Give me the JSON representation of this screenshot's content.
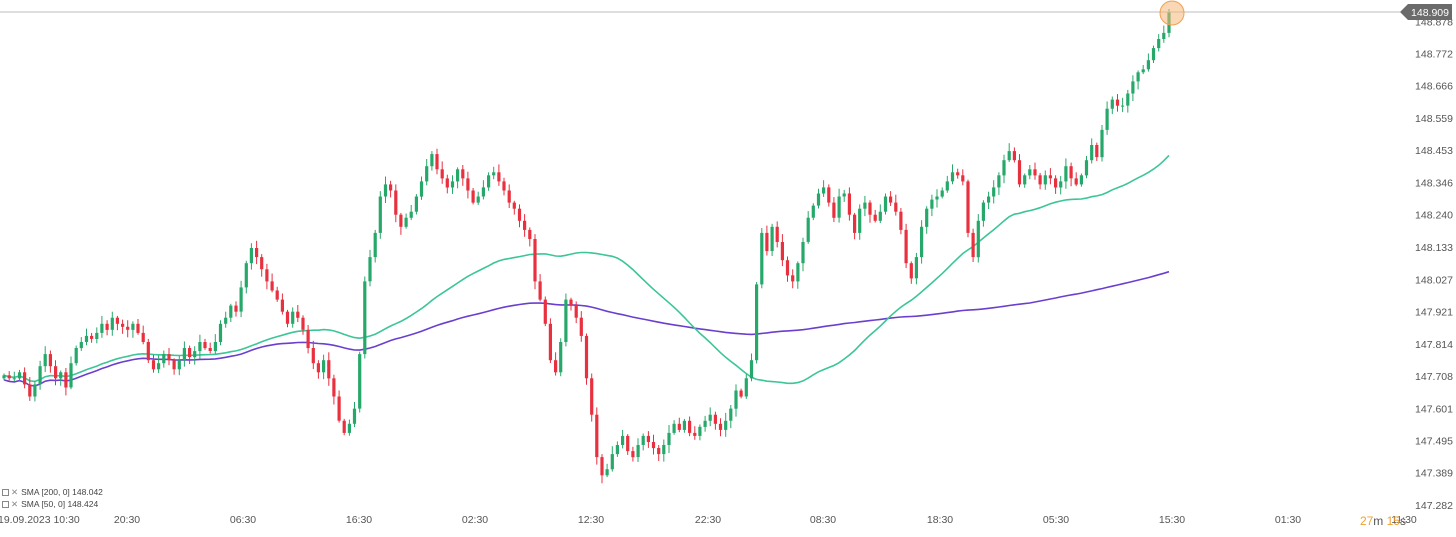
{
  "chart_data": {
    "type": "candlestick",
    "instrument_price_current": "148.909",
    "price_axis_ticks": [
      "148.878",
      "148.772",
      "148.666",
      "148.559",
      "148.453",
      "148.346",
      "148.240",
      "148.133",
      "148.027",
      "147.921",
      "147.814",
      "147.708",
      "147.601",
      "147.495",
      "147.389",
      "147.282"
    ],
    "time_axis_ticks": [
      "19.09.2023 10:30",
      "20:30",
      "06:30",
      "16:30",
      "02:30",
      "12:30",
      "22:30",
      "08:30",
      "18:30",
      "05:30",
      "15:30",
      "01:30",
      "11:30"
    ],
    "ylim": [
      147.282,
      148.909
    ],
    "closes": [
      147.71,
      147.7,
      147.7,
      147.72,
      147.68,
      147.64,
      147.68,
      147.74,
      147.78,
      147.74,
      147.7,
      147.72,
      147.67,
      147.75,
      147.8,
      147.82,
      147.84,
      147.83,
      147.85,
      147.88,
      147.86,
      147.9,
      147.88,
      147.87,
      147.86,
      147.88,
      147.85,
      147.82,
      147.76,
      147.73,
      147.75,
      147.78,
      147.76,
      147.73,
      147.76,
      147.8,
      147.77,
      147.79,
      147.82,
      147.8,
      147.79,
      147.82,
      147.88,
      147.9,
      147.94,
      147.92,
      148.0,
      148.08,
      148.13,
      148.1,
      148.06,
      148.02,
      147.99,
      147.96,
      147.92,
      147.88,
      147.92,
      147.9,
      147.86,
      147.8,
      147.75,
      147.72,
      147.76,
      147.7,
      147.64,
      147.56,
      147.52,
      147.55,
      147.6,
      147.78,
      148.02,
      148.1,
      148.18,
      148.3,
      148.34,
      148.32,
      148.24,
      148.2,
      148.23,
      148.25,
      148.3,
      148.35,
      148.4,
      148.44,
      148.39,
      148.36,
      148.33,
      148.35,
      148.39,
      148.36,
      148.32,
      148.28,
      148.3,
      148.33,
      148.37,
      148.38,
      148.35,
      148.32,
      148.28,
      148.26,
      148.22,
      148.19,
      148.16,
      148.02,
      147.96,
      147.88,
      147.76,
      147.72,
      147.82,
      147.96,
      147.94,
      147.9,
      147.84,
      147.7,
      147.58,
      147.44,
      147.38,
      147.4,
      147.45,
      147.48,
      147.51,
      147.46,
      147.44,
      147.48,
      147.51,
      147.49,
      147.47,
      147.45,
      147.48,
      147.52,
      147.55,
      147.53,
      147.56,
      147.52,
      147.51,
      147.54,
      147.56,
      147.58,
      147.55,
      147.53,
      147.56,
      147.6,
      147.66,
      147.64,
      147.7,
      147.76,
      148.01,
      148.18,
      148.12,
      148.2,
      148.15,
      148.09,
      148.04,
      148.02,
      148.08,
      148.15,
      148.23,
      148.27,
      148.31,
      148.33,
      148.28,
      148.23,
      148.3,
      148.31,
      148.24,
      148.18,
      148.26,
      148.28,
      148.24,
      148.22,
      148.25,
      148.3,
      148.28,
      148.25,
      148.19,
      148.08,
      148.03,
      148.1,
      148.2,
      148.26,
      148.29,
      148.3,
      148.32,
      148.35,
      148.38,
      148.37,
      148.35,
      148.18,
      148.1,
      148.22,
      148.28,
      148.3,
      148.33,
      148.37,
      148.42,
      148.45,
      148.42,
      148.34,
      148.37,
      148.39,
      148.37,
      148.34,
      148.37,
      148.36,
      148.33,
      148.35,
      148.4,
      148.36,
      148.34,
      148.37,
      148.42,
      148.47,
      148.43,
      148.52,
      148.59,
      148.62,
      148.6,
      148.6,
      148.64,
      148.68,
      148.71,
      148.72,
      148.75,
      148.79,
      148.82,
      148.84,
      148.909
    ],
    "series": [
      {
        "name": "SMA [200, 0]",
        "last_value": "148.042",
        "color": "#6a3fd0"
      },
      {
        "name": "SMA [50, 0]",
        "last_value": "148.424",
        "color": "#3cc596"
      }
    ],
    "colors": {
      "up": "#26a86a",
      "down": "#e8303f",
      "grid": "#c8c8c8"
    },
    "countdown": {
      "minutes": "27",
      "m_label": "m",
      "seconds": "15",
      "s_label": "s"
    }
  }
}
